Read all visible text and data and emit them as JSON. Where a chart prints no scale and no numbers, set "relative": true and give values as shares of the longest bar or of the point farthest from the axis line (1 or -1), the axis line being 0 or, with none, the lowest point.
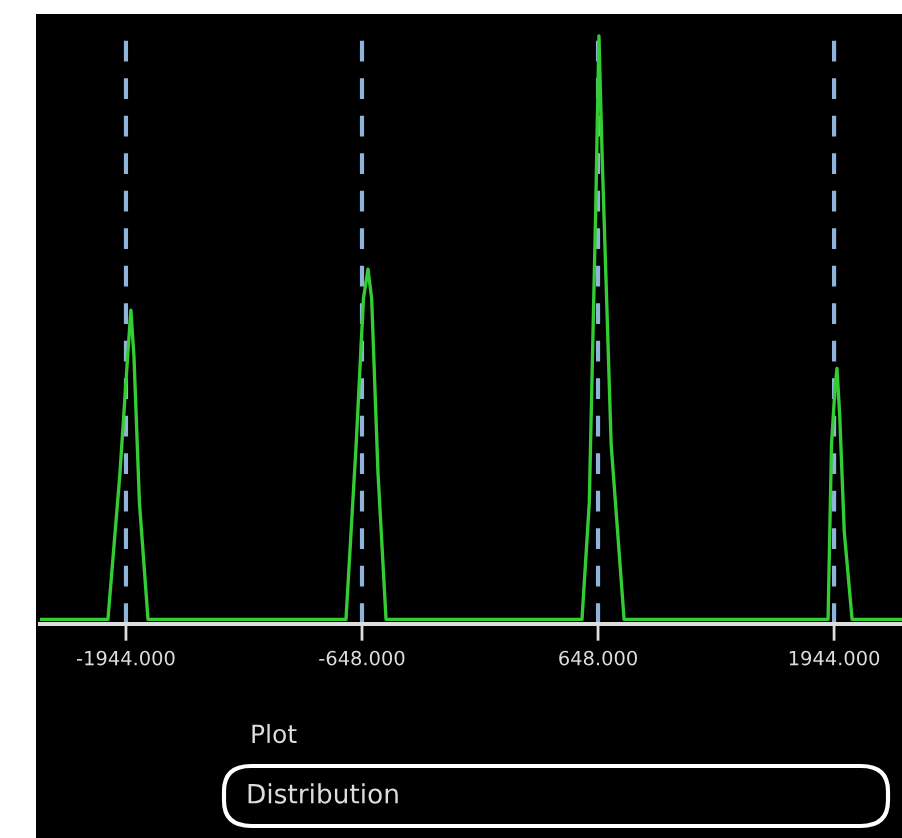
{
  "chart_data": {
    "type": "line",
    "relative": true,
    "x": [
      -2416,
      -2043,
      -1977,
      -1935,
      -1917,
      -1900,
      -1870,
      -1823,
      -736,
      -680,
      -640,
      -615,
      -595,
      -560,
      -516,
      560,
      600,
      635,
      653,
      670,
      720,
      791,
      1911,
      1930,
      1950,
      1960,
      1975,
      2000,
      2043,
      2317
    ],
    "series": [
      {
        "color": "#33cc33",
        "values": [
          0,
          0,
          0.25,
          0.45,
          0.53,
          0.45,
          0.2,
          0,
          0,
          0.3,
          0.55,
          0.6,
          0.55,
          0.25,
          0,
          0,
          0.2,
          0.7,
          1.0,
          0.8,
          0.3,
          0,
          0,
          0.3,
          0.4,
          0.43,
          0.35,
          0.15,
          0,
          0
        ]
      }
    ],
    "xlim": [
      -2416,
      2317
    ],
    "xticks": [
      {
        "value": -1944,
        "label": "-1944.000"
      },
      {
        "value": -648,
        "label": "-648.000"
      },
      {
        "value": 648,
        "label": "648.000"
      },
      {
        "value": 1944,
        "label": "1944.000"
      }
    ],
    "tick_labels": "x",
    "ref_lines": [
      {
        "axis": "x",
        "value": -1944,
        "color": "#8fb3d9",
        "line_style": "dashed"
      },
      {
        "axis": "x",
        "value": -648,
        "color": "#8fb3d9",
        "line_style": "dashed"
      },
      {
        "axis": "x",
        "value": 648,
        "color": "#8fb3d9",
        "line_style": "dashed"
      },
      {
        "axis": "x",
        "value": 1944,
        "color": "#8fb3d9",
        "line_style": "dashed"
      }
    ],
    "grid": false,
    "annotations": [
      "Plot",
      "Distribution"
    ]
  }
}
